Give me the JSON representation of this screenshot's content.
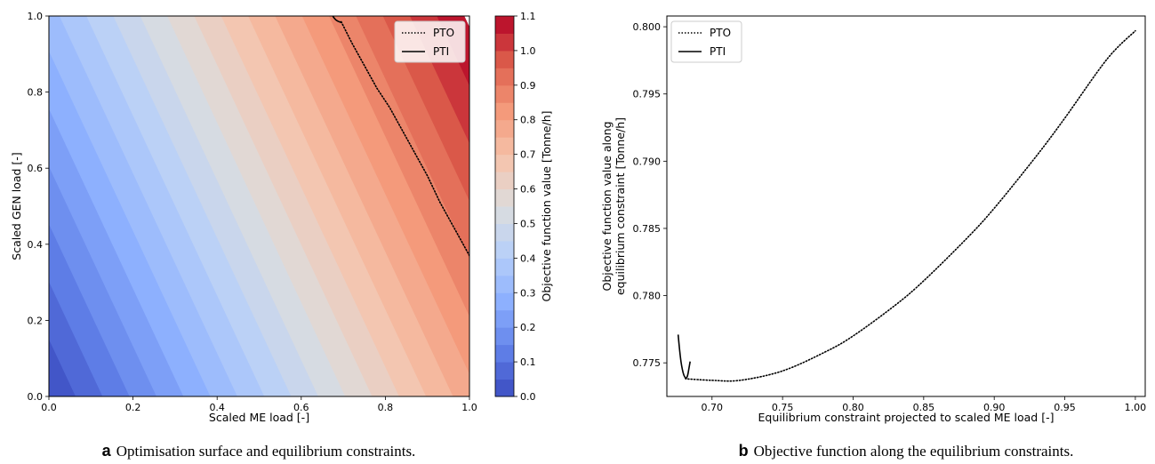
{
  "chart_data": [
    {
      "id": "a",
      "type": "contour",
      "xlabel": "Scaled ME load [-]",
      "ylabel": "Scaled GEN load [-]",
      "xlim": [
        0.0,
        1.0
      ],
      "ylim": [
        0.0,
        1.0
      ],
      "x_ticks": [
        "0.0",
        "0.2",
        "0.4",
        "0.6",
        "0.8",
        "1.0"
      ],
      "y_ticks": [
        "0.0",
        "0.2",
        "0.4",
        "0.6",
        "0.8",
        "1.0"
      ],
      "surface": {
        "z_at_origin": 0.0,
        "z_slope_x": 0.78,
        "z_slope_y": 0.33
      },
      "colorbar": {
        "label": "Objective function value [Tonne/h]",
        "range": [
          0.0,
          1.1
        ],
        "levels": 22,
        "ticks": [
          "0.0",
          "0.1",
          "0.2",
          "0.3",
          "0.4",
          "0.5",
          "0.6",
          "0.7",
          "0.8",
          "0.9",
          "1.0",
          "1.1"
        ]
      },
      "series": [
        {
          "name": "PTO",
          "style": "dotted",
          "x": [
            0.695,
            0.72,
            0.75,
            0.78,
            0.81,
            0.84,
            0.87,
            0.9,
            0.93,
            0.96,
            0.98,
            1.0
          ],
          "y": [
            0.985,
            0.93,
            0.87,
            0.81,
            0.76,
            0.7,
            0.64,
            0.58,
            0.51,
            0.45,
            0.41,
            0.37
          ]
        },
        {
          "name": "PTI",
          "style": "solid",
          "x": [
            0.675,
            0.678,
            0.682,
            0.686,
            0.69,
            0.695
          ],
          "y": [
            1.0,
            0.995,
            0.99,
            0.987,
            0.985,
            0.983
          ]
        }
      ],
      "legend": "upper right",
      "caption_letter": "a",
      "caption": "Optimisation surface and equilibrium constraints."
    },
    {
      "id": "b",
      "type": "line",
      "xlabel": "Equilibrium constraint projected to scaled ME load [-]",
      "ylabel_line1": "Objective function value along",
      "ylabel_line2": "equilibrium constraint [Tonne/h]",
      "xlim": [
        0.668,
        1.007
      ],
      "ylim": [
        0.7725,
        0.8008
      ],
      "x_ticks": [
        "0.70",
        "0.75",
        "0.80",
        "0.85",
        "0.90",
        "0.95",
        "1.00"
      ],
      "y_ticks": [
        "0.775",
        "0.780",
        "0.785",
        "0.790",
        "0.795",
        "0.800"
      ],
      "series": [
        {
          "name": "PTO",
          "style": "dotted",
          "x": [
            0.683,
            0.7,
            0.72,
            0.75,
            0.78,
            0.8,
            0.83,
            0.85,
            0.88,
            0.9,
            0.93,
            0.95,
            0.98,
            1.0
          ],
          "y": [
            0.7738,
            0.7737,
            0.7737,
            0.7744,
            0.7758,
            0.777,
            0.7793,
            0.7811,
            0.7842,
            0.7865,
            0.7904,
            0.7932,
            0.7976,
            0.7997
          ]
        },
        {
          "name": "PTI",
          "style": "solid",
          "x": [
            0.676,
            0.677,
            0.678,
            0.679,
            0.68,
            0.681,
            0.6815,
            0.682,
            0.6825,
            0.683,
            0.6835,
            0.684,
            0.6845
          ],
          "y": [
            0.7771,
            0.776,
            0.7751,
            0.7745,
            0.7741,
            0.7739,
            0.7738,
            0.7739,
            0.774,
            0.7742,
            0.7745,
            0.7748,
            0.7751
          ]
        }
      ],
      "legend": "upper left",
      "caption_letter": "b",
      "caption": "Objective function along the equilibrium constraints."
    }
  ]
}
